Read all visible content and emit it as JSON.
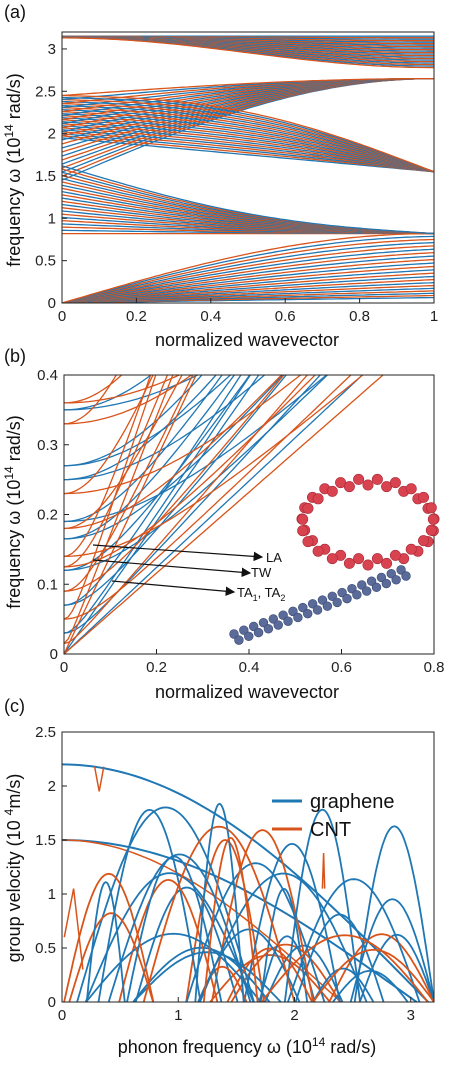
{
  "colors": {
    "graphene": "#1f77b4",
    "cnt": "#d9541a",
    "axis": "#222222",
    "atoms_ring": "#d9434f",
    "atoms_chain": "#5a6b9a"
  },
  "chart_data": [
    {
      "panel": "(a)",
      "type": "line",
      "title": "",
      "xlabel": "normalized wavevector",
      "ylabel": "frequency  ω  (10¹⁴ rad/s)",
      "xlim": [
        0,
        1
      ],
      "ylim": [
        0,
        3.2
      ],
      "xticks": [
        "0",
        "0.2",
        "0.4",
        "0.6",
        "0.8",
        "1"
      ],
      "yticks": [
        "0",
        "0.5",
        "1",
        "1.5",
        "2",
        "2.5",
        "3"
      ],
      "series": [
        {
          "name": "graphene",
          "note": "dense family of phonon branches"
        },
        {
          "name": "CNT",
          "note": "dense family of phonon branches"
        }
      ],
      "landmarks": {
        "acoustic_end_x1": 0.82,
        "optical_top": 3.15,
        "crossing_bands": [
          1.5,
          2.45,
          2.65
        ]
      }
    },
    {
      "panel": "(b)",
      "type": "line",
      "title": "",
      "xlabel": "normalized wavevector",
      "ylabel": "frequency  ω  (10¹⁴ rad/s)",
      "xlim": [
        0,
        0.8
      ],
      "ylim": [
        0,
        0.4
      ],
      "xticks": [
        "0",
        "0.2",
        "0.4",
        "0.6",
        "0.8"
      ],
      "yticks": [
        "0",
        "0.1",
        "0.2",
        "0.3",
        "0.4"
      ],
      "annotations": [
        "LA",
        "TW",
        "TA₁, TA₂"
      ],
      "branch_starts_graphene": [
        0.0,
        0.03,
        0.07,
        0.12,
        0.165,
        0.19,
        0.25,
        0.27,
        0.35
      ],
      "branch_starts_cnt": [
        0.0,
        0.015,
        0.05,
        0.09,
        0.125,
        0.14,
        0.18,
        0.23,
        0.33,
        0.36
      ]
    },
    {
      "panel": "(c)",
      "type": "line",
      "title": "",
      "xlabel": "phonon frequency  ω (10¹⁴ rad/s)",
      "ylabel": "group velocity (10 ⁴m/s)",
      "xlim": [
        0,
        3.2
      ],
      "ylim": [
        0,
        2.5
      ],
      "xticks": [
        "0",
        "1",
        "2",
        "3"
      ],
      "yticks": [
        "0",
        "0.5",
        "1",
        "1.5",
        "2",
        "2.5"
      ],
      "legend": {
        "position": "top-right",
        "entries": [
          "graphene",
          "CNT"
        ]
      },
      "landmarks": {
        "LA_velocity": 2.2,
        "TA_velocity": 1.5,
        "cutoff_frequency": 3.15
      }
    }
  ],
  "labels": {
    "panel_a": "(a)",
    "panel_b": "(b)",
    "panel_c": "(c)",
    "a_xlabel": "normalized wavevector",
    "b_xlabel": "normalized wavevector",
    "c_xlabel_pre": "phonon frequency  ω (10",
    "c_xlabel_sup": "14",
    "c_xlabel_post": " rad/s)",
    "ylabel_freq_pre": "frequency  ω  (10",
    "ylabel_freq_sup": "14",
    "ylabel_freq_post": " rad/s)",
    "ylabel_vel_pre": "group velocity (10 ",
    "ylabel_vel_sup": "4",
    "ylabel_vel_post": "m/s)",
    "ann_LA": "LA",
    "ann_TW": "TW",
    "ann_TA_pre": "TA",
    "ann_TA_sub1": "1",
    "ann_TA_mid": ", TA",
    "ann_TA_sub2": "2",
    "legend_graphene": "graphene",
    "legend_cnt": "CNT"
  }
}
